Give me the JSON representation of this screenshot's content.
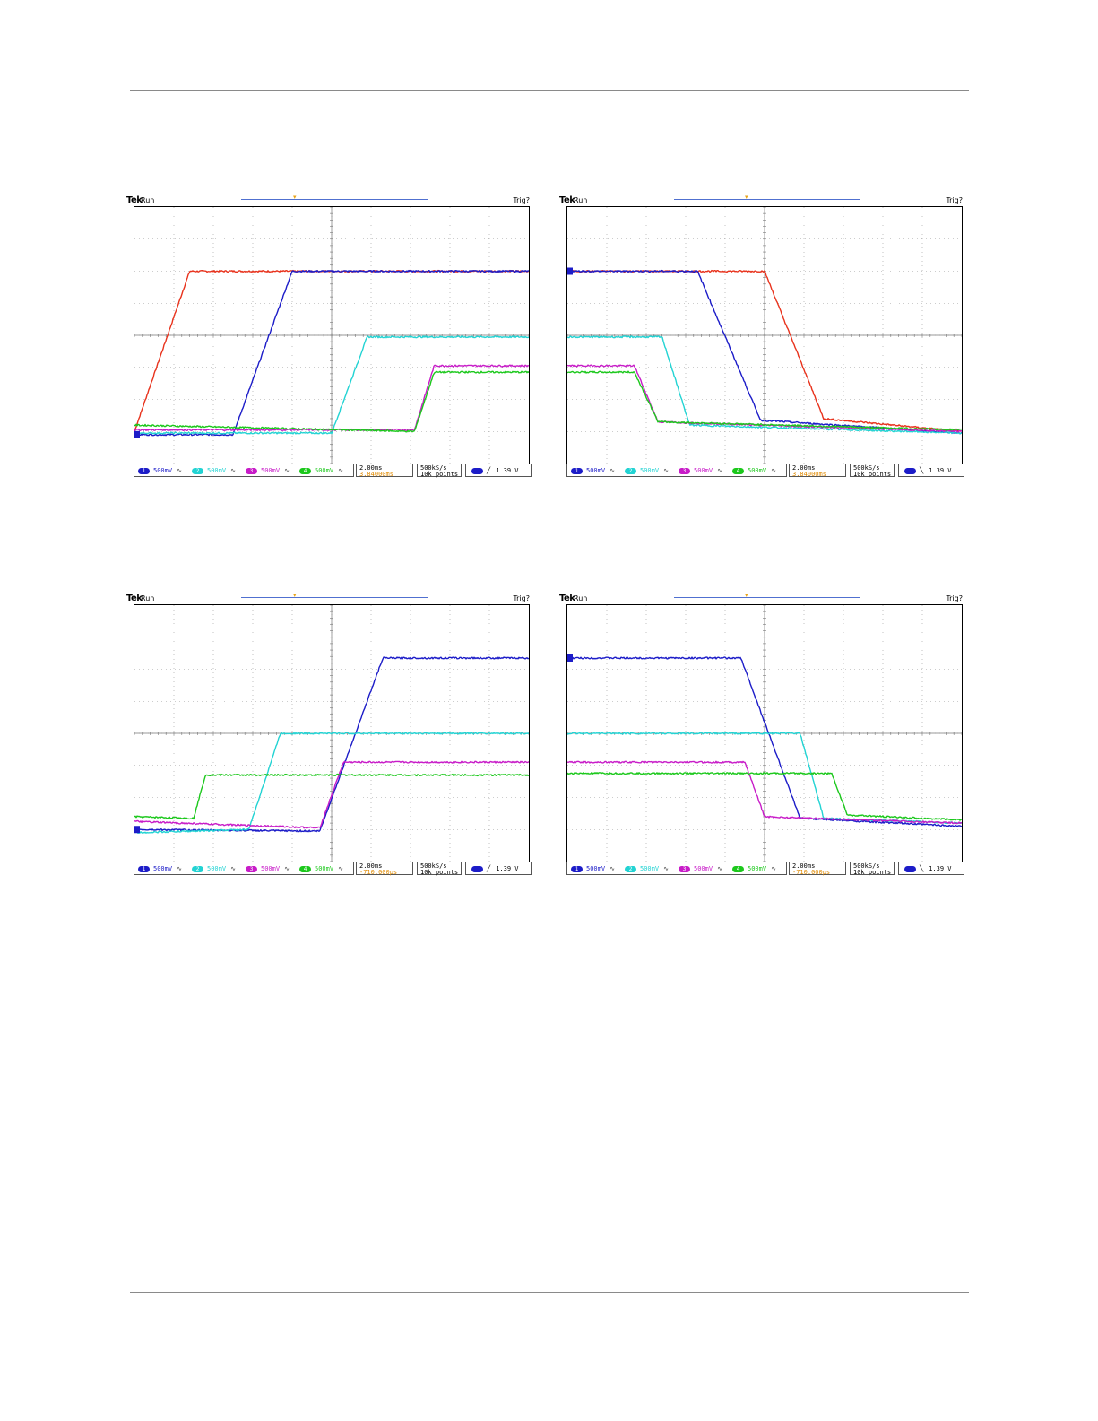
{
  "colors": {
    "ch1": "#1c1cc8",
    "ch2": "#22d3d3",
    "ch3": "#c81cc8",
    "ch4": "#1cc81c",
    "ref": "#e8321c",
    "trigger_marker": "#e8a317",
    "delay_text": "#e08a00",
    "grid": "#9a9a9a"
  },
  "common": {
    "brand": "Tek",
    "run_state": "Run",
    "trigger_state": "Trig?",
    "timebase": "2.00ms",
    "sample_rate": "500kS/s",
    "record_length": "10k points",
    "trigger_level": "1.39 V",
    "channels": [
      {
        "id": "1",
        "scale": "500mV",
        "coupling": "∿"
      },
      {
        "id": "2",
        "scale": "500mV",
        "coupling": "∿"
      },
      {
        "id": "3",
        "scale": "500mV",
        "coupling": "∿"
      },
      {
        "id": "4",
        "scale": "500mV",
        "coupling": "∿"
      }
    ]
  },
  "chart_data": [
    {
      "type": "line",
      "title": "",
      "time_per_div": "2.00ms",
      "volts_per_div": "500mV",
      "delay": "3.84000ms",
      "trigger_slope": "rising",
      "x_divisions": 10,
      "y_divisions": 8,
      "series": [
        {
          "channel": "R",
          "points": [
            [
              0,
              1.0
            ],
            [
              1.4,
              6.0
            ],
            [
              10,
              6.0
            ]
          ]
        },
        {
          "channel": "1",
          "points": [
            [
              0,
              0.9
            ],
            [
              2.5,
              0.9
            ],
            [
              4.0,
              6.0
            ],
            [
              10,
              6.0
            ]
          ]
        },
        {
          "channel": "2",
          "points": [
            [
              0,
              0.95
            ],
            [
              5.0,
              0.95
            ],
            [
              5.9,
              3.95
            ],
            [
              10,
              3.95
            ]
          ]
        },
        {
          "channel": "3",
          "points": [
            [
              0,
              1.05
            ],
            [
              7.1,
              1.05
            ],
            [
              7.6,
              3.05
            ],
            [
              10,
              3.05
            ]
          ]
        },
        {
          "channel": "4",
          "points": [
            [
              0,
              1.2
            ],
            [
              7.1,
              1.0
            ],
            [
              7.6,
              2.85
            ],
            [
              10,
              2.85
            ]
          ]
        }
      ]
    },
    {
      "type": "line",
      "title": "",
      "time_per_div": "2.00ms",
      "volts_per_div": "500mV",
      "delay": "3.84000ms",
      "trigger_slope": "falling",
      "x_divisions": 10,
      "y_divisions": 8,
      "series": [
        {
          "channel": "R",
          "points": [
            [
              0,
              6.0
            ],
            [
              5.0,
              6.0
            ],
            [
              6.5,
              1.4
            ],
            [
              10,
              1.0
            ]
          ]
        },
        {
          "channel": "1",
          "points": [
            [
              0,
              6.0
            ],
            [
              3.3,
              6.0
            ],
            [
              4.9,
              1.35
            ],
            [
              10,
              0.95
            ]
          ]
        },
        {
          "channel": "2",
          "points": [
            [
              0,
              3.95
            ],
            [
              2.4,
              3.95
            ],
            [
              3.1,
              1.2
            ],
            [
              10,
              0.95
            ]
          ]
        },
        {
          "channel": "3",
          "points": [
            [
              0,
              3.05
            ],
            [
              1.7,
              3.05
            ],
            [
              2.3,
              1.3
            ],
            [
              10,
              1.0
            ]
          ]
        },
        {
          "channel": "4",
          "points": [
            [
              0,
              2.85
            ],
            [
              1.7,
              2.85
            ],
            [
              2.3,
              1.3
            ],
            [
              10,
              1.05
            ]
          ]
        }
      ]
    },
    {
      "type": "line",
      "title": "",
      "time_per_div": "2.00ms",
      "volts_per_div": "500mV",
      "delay": "-710.000µs",
      "trigger_slope": "rising",
      "x_divisions": 10,
      "y_divisions": 8,
      "series": [
        {
          "channel": "1",
          "points": [
            [
              0,
              1.0
            ],
            [
              4.7,
              0.95
            ],
            [
              6.3,
              6.35
            ],
            [
              10,
              6.35
            ]
          ]
        },
        {
          "channel": "2",
          "points": [
            [
              0,
              0.9
            ],
            [
              2.9,
              1.0
            ],
            [
              3.7,
              4.0
            ],
            [
              10,
              4.0
            ]
          ]
        },
        {
          "channel": "3",
          "points": [
            [
              0,
              1.25
            ],
            [
              4.7,
              1.05
            ],
            [
              5.3,
              3.1
            ],
            [
              10,
              3.1
            ]
          ]
        },
        {
          "channel": "4",
          "points": [
            [
              0,
              1.4
            ],
            [
              1.5,
              1.35
            ],
            [
              1.8,
              2.7
            ],
            [
              10,
              2.7
            ]
          ]
        }
      ]
    },
    {
      "type": "line",
      "title": "",
      "time_per_div": "2.00ms",
      "volts_per_div": "500mV",
      "delay": "-710.000µs",
      "trigger_slope": "falling",
      "x_divisions": 10,
      "y_divisions": 8,
      "series": [
        {
          "channel": "1",
          "points": [
            [
              0,
              6.35
            ],
            [
              4.4,
              6.35
            ],
            [
              5.9,
              1.35
            ],
            [
              10,
              1.1
            ]
          ]
        },
        {
          "channel": "2",
          "points": [
            [
              0,
              4.0
            ],
            [
              5.9,
              4.0
            ],
            [
              6.5,
              1.35
            ],
            [
              10,
              1.2
            ]
          ]
        },
        {
          "channel": "3",
          "points": [
            [
              0,
              3.1
            ],
            [
              4.5,
              3.1
            ],
            [
              5.0,
              1.4
            ],
            [
              10,
              1.2
            ]
          ]
        },
        {
          "channel": "4",
          "points": [
            [
              0,
              2.75
            ],
            [
              6.7,
              2.75
            ],
            [
              7.1,
              1.45
            ],
            [
              10,
              1.3
            ]
          ]
        }
      ]
    }
  ]
}
